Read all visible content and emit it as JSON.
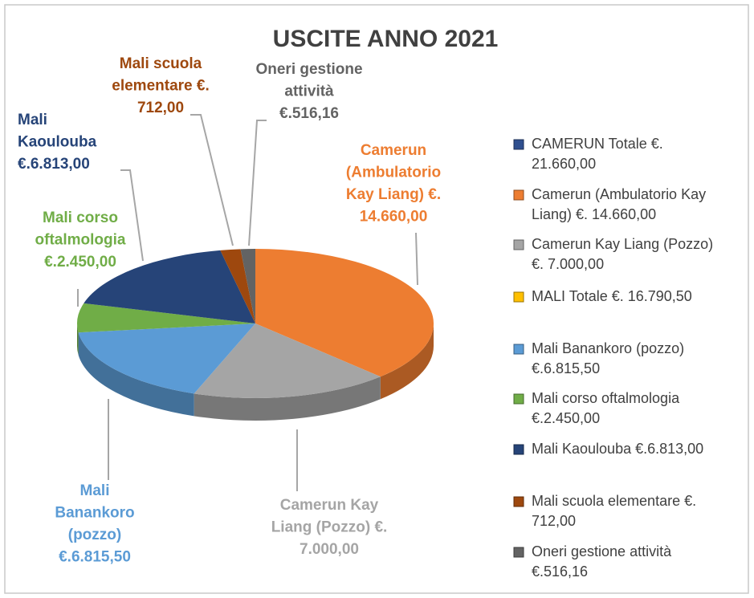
{
  "chart_data": {
    "type": "pie",
    "title": "USCITE ANNO 2021",
    "categories": [
      "Camerun (Ambulatorio Kay Liang)",
      "Camerun Kay Liang (Pozzo)",
      "Mali Banankoro (pozzo)",
      "Mali corso oftalmologia",
      "Mali Kaoulouba",
      "Mali scuola elementare",
      "Oneri gestione attività"
    ],
    "values": [
      14660,
      7000,
      6815.5,
      2450,
      6813,
      712,
      516.16
    ],
    "colors": [
      "#ed7d31",
      "#a5a5a5",
      "#5b9bd5",
      "#70ad47",
      "#264478",
      "#9e480e",
      "#636363"
    ],
    "data_labels": [
      [
        "Camerun",
        "(Ambulatorio",
        "Kay Liang) €.",
        "14.660,00"
      ],
      [
        "Camerun Kay",
        "Liang (Pozzo) €.",
        "7.000,00"
      ],
      [
        "Mali",
        "Banankoro",
        "(pozzo)",
        "€.6.815,50"
      ],
      [
        "Mali corso",
        "oftalmologia",
        "€.2.450,00"
      ],
      [
        "Mali",
        "Kaoulouba",
        "€.6.813,00"
      ],
      [
        "Mali scuola",
        "elementare €.",
        "712,00"
      ],
      [
        "Oneri gestione",
        "attività",
        "€.516,16"
      ]
    ],
    "legend": [
      {
        "lines": [
          "CAMERUN Totale €.",
          "21.660,00"
        ],
        "color": "#2f4f8f"
      },
      {
        "lines": [
          "Camerun (Ambulatorio Kay",
          "Liang) €. 14.660,00"
        ],
        "color": "#ed7d31"
      },
      {
        "lines": [
          "Camerun Kay Liang (Pozzo)",
          "€. 7.000,00"
        ],
        "color": "#a5a5a5"
      },
      {
        "lines": [
          "MALI Totale €. 16.790,50"
        ],
        "color": "#ffc000"
      },
      {
        "lines": [
          "Mali Banankoro (pozzo)",
          "€.6.815,50"
        ],
        "color": "#5b9bd5"
      },
      {
        "lines": [
          "Mali corso oftalmologia",
          "€.2.450,00"
        ],
        "color": "#70ad47"
      },
      {
        "lines": [
          "Mali Kaoulouba €.6.813,00"
        ],
        "color": "#264478"
      },
      {
        "lines": [
          "Mali scuola elementare €.",
          "712,00"
        ],
        "color": "#9e480e"
      },
      {
        "lines": [
          "Oneri gestione attività",
          "€.516,16"
        ],
        "color": "#636363"
      }
    ]
  }
}
